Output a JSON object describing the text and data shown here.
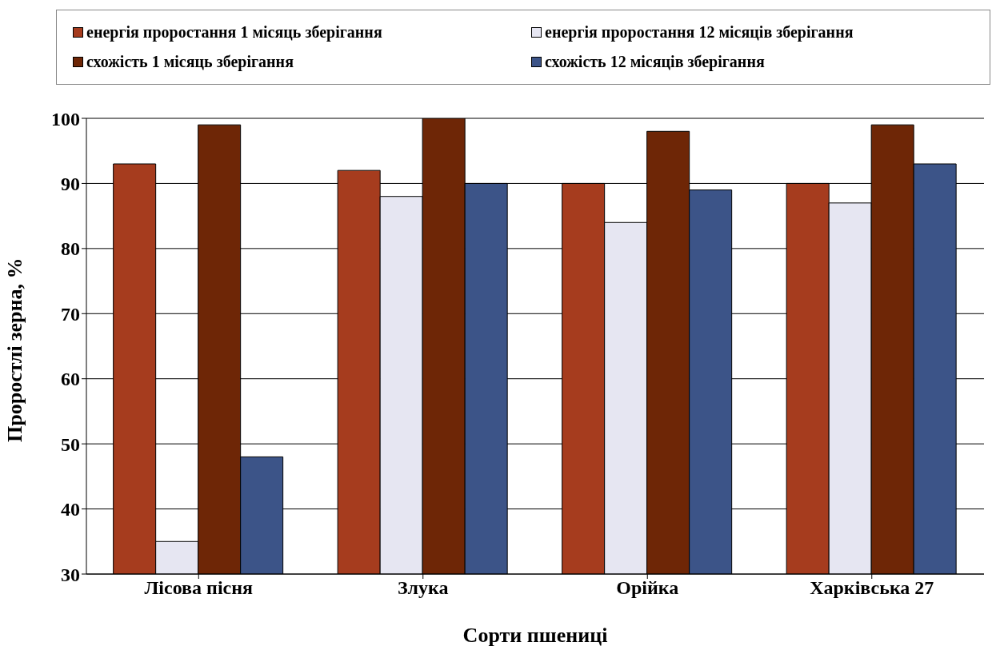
{
  "chart_data": {
    "type": "bar",
    "xlabel": "Сорти пшениці",
    "ylabel": "Проростлі зерна, %",
    "categories": [
      "Лісова пісня",
      "Злука",
      "Орійка",
      "Харківська 27"
    ],
    "series": [
      {
        "name": "енергія проростання 1 місяць зберігання",
        "color": "#a63c1e",
        "values": [
          93,
          92,
          90,
          90
        ]
      },
      {
        "name": "енергія проростання 12 місяців зберігання",
        "color": "#e6e6f2",
        "values": [
          35,
          88,
          84,
          87
        ]
      },
      {
        "name": "схожість 1 місяць зберігання",
        "color": "#6e2606",
        "values": [
          99,
          100,
          98,
          99
        ]
      },
      {
        "name": "схожість 12 місяців зберігання",
        "color": "#3c5488",
        "values": [
          48,
          90,
          89,
          93
        ]
      }
    ],
    "ylim": [
      30,
      100
    ],
    "yticks": [
      30,
      40,
      50,
      60,
      70,
      80,
      90,
      100
    ],
    "grid": "y",
    "legend": "top"
  }
}
